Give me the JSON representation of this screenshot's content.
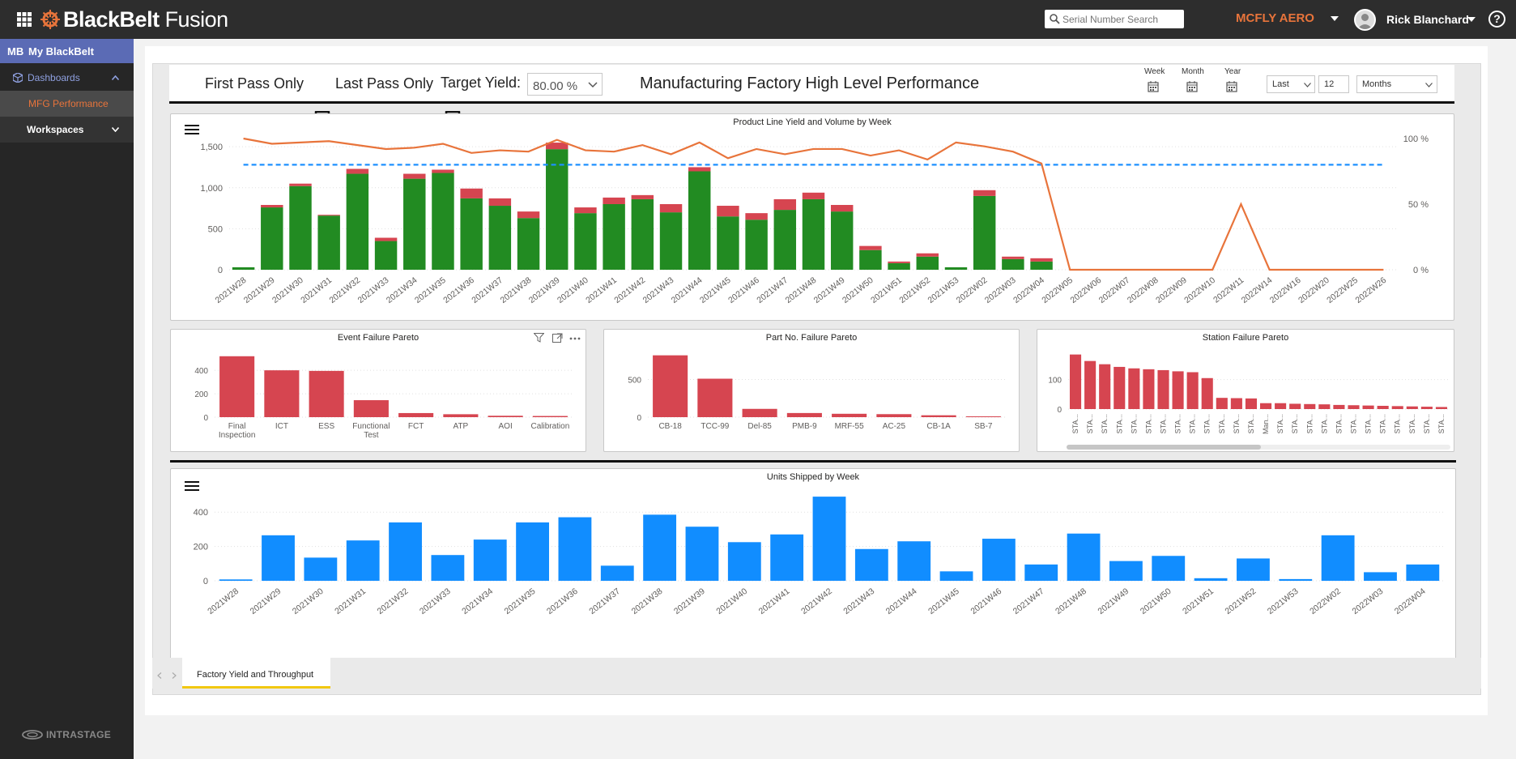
{
  "topbar": {
    "brand_bold": "BlackBelt",
    "brand_light": " Fusion",
    "search_placeholder": "Serial Number Search",
    "org_name": "MCFLY AERO",
    "user_name": "Rick Blanchard"
  },
  "sidebar": {
    "header_badge": "MB",
    "header_label": "My BlackBelt",
    "dashboards_label": "Dashboards",
    "active_item": "MFG Performance",
    "workspaces_label": "Workspaces",
    "footer_logo": "INTRASTAGE"
  },
  "report": {
    "first_pass_label": "First Pass Only",
    "last_pass_label": "Last Pass Only",
    "target_yield_label": "Target Yield:",
    "target_yield_value": "80.00 %",
    "title": "Manufacturing Factory High Level Performance",
    "period_week": "Week",
    "period_month": "Month",
    "period_year": "Year",
    "relative_value": "Last",
    "count_value": "12",
    "unit_value": "Months",
    "page_tab": "Factory Yield and Throughput",
    "colors": {
      "pass": "#228b22",
      "fail": "#d64550",
      "yield_line": "#e8743b",
      "target": "#1e90ff",
      "shipped": "#118dff",
      "accent": "#e8743b"
    }
  },
  "chart_data": [
    {
      "type": "bar",
      "title": "Product Line Yield and Volume by Week",
      "categories": [
        "2021W28",
        "2021W29",
        "2021W30",
        "2021W31",
        "2021W32",
        "2021W33",
        "2021W34",
        "2021W35",
        "2021W36",
        "2021W37",
        "2021W38",
        "2021W39",
        "2021W40",
        "2021W41",
        "2021W42",
        "2021W43",
        "2021W44",
        "2021W45",
        "2021W46",
        "2021W47",
        "2021W48",
        "2021W49",
        "2021W50",
        "2021W51",
        "2021W52",
        "2021W53",
        "2022W02",
        "2022W03",
        "2022W04",
        "2022W05",
        "2022W06",
        "2022W07",
        "2022W08",
        "2022W09",
        "2022W10",
        "2022W11",
        "2022W14",
        "2022W16",
        "2022W20",
        "2022W25",
        "2022W26"
      ],
      "series": [
        {
          "values": [
            30,
            760,
            1020,
            660,
            1170,
            350,
            1110,
            1180,
            870,
            780,
            630,
            1470,
            690,
            800,
            860,
            700,
            1200,
            650,
            610,
            730,
            860,
            710,
            240,
            80,
            160,
            30,
            900,
            130,
            100,
            0,
            0,
            0,
            0,
            0,
            0,
            0,
            0,
            0,
            0,
            0,
            0
          ]
        },
        {
          "values": [
            0,
            30,
            30,
            10,
            60,
            40,
            60,
            40,
            120,
            90,
            80,
            80,
            70,
            80,
            50,
            100,
            50,
            130,
            80,
            130,
            80,
            80,
            50,
            20,
            40,
            0,
            70,
            30,
            40,
            0,
            0,
            0,
            0,
            0,
            0,
            0,
            0,
            0,
            0,
            0,
            0
          ]
        },
        {
          "values": [
            100,
            96,
            97,
            98,
            95,
            92,
            93,
            96,
            89,
            91,
            90,
            99,
            91,
            90,
            95,
            88,
            97,
            85,
            92,
            88,
            92,
            92,
            87,
            91,
            84,
            97,
            94,
            90,
            81,
            0,
            0,
            0,
            0,
            0,
            0,
            50,
            0,
            0,
            0,
            0,
            0
          ]
        },
        {
          "values": [
            80,
            80,
            80,
            80,
            80,
            80,
            80,
            80,
            80,
            80,
            80,
            80,
            80,
            80,
            80,
            80,
            80,
            80,
            80,
            80,
            80,
            80,
            80,
            80,
            80,
            80,
            80,
            80,
            80,
            80,
            80,
            80,
            80,
            80,
            80,
            80,
            80,
            80,
            80,
            80,
            80
          ]
        }
      ],
      "y_ticks": [
        "0",
        "500",
        "1,000",
        "1,500"
      ],
      "y2_ticks": [
        "0 %",
        "50 %",
        "100 %"
      ],
      "ylim": [
        0,
        1600
      ],
      "y2lim": [
        0,
        100
      ]
    },
    {
      "type": "bar",
      "title": "Event Failure Pareto",
      "categories": [
        "Final Inspection",
        "ICT",
        "ESS",
        "Functional Test",
        "FCT",
        "ATP",
        "AOI",
        "Calibration"
      ],
      "values": [
        520,
        400,
        395,
        145,
        35,
        25,
        12,
        10
      ],
      "y_ticks": [
        "0",
        "200",
        "400"
      ],
      "ylim": [
        0,
        560
      ]
    },
    {
      "type": "bar",
      "title": "Part No. Failure Pareto",
      "categories": [
        "CB-18",
        "TCC-99",
        "Del-85",
        "PMB-9",
        "MRF-55",
        "AC-25",
        "CB-1A",
        "SB-7"
      ],
      "values": [
        820,
        510,
        110,
        55,
        45,
        40,
        25,
        10
      ],
      "y_ticks": [
        "0",
        "500"
      ],
      "ylim": [
        0,
        870
      ]
    },
    {
      "type": "bar",
      "title": "Station Failure Pareto",
      "categories": [
        "STA...",
        "STA...",
        "STA...",
        "STA...",
        "STA...",
        "STA...",
        "STA...",
        "STA...",
        "STA...",
        "STA...",
        "STA...",
        "STA...",
        "STA...",
        "Man...",
        "STA...",
        "STA...",
        "STA...",
        "STA...",
        "STA...",
        "STA...",
        "STA...",
        "STA...",
        "STA...",
        "STA...",
        "STA...",
        "STA..."
      ],
      "values": [
        185,
        163,
        152,
        143,
        138,
        135,
        132,
        128,
        125,
        105,
        38,
        37,
        36,
        20,
        20,
        18,
        17,
        16,
        14,
        13,
        12,
        11,
        10,
        9,
        8,
        7
      ],
      "y_ticks": [
        "0",
        "100"
      ],
      "ylim": [
        0,
        195
      ]
    },
    {
      "type": "bar",
      "title": "Units Shipped by Week",
      "categories": [
        "2021W28",
        "2021W29",
        "2021W30",
        "2021W31",
        "2021W32",
        "2021W33",
        "2021W34",
        "2021W35",
        "2021W36",
        "2021W37",
        "2021W38",
        "2021W39",
        "2021W40",
        "2021W41",
        "2021W42",
        "2021W43",
        "2021W44",
        "2021W45",
        "2021W46",
        "2021W47",
        "2021W48",
        "2021W49",
        "2021W50",
        "2021W51",
        "2021W52",
        "2021W53",
        "2022W02",
        "2022W03",
        "2022W04"
      ],
      "values": [
        8,
        265,
        135,
        235,
        340,
        150,
        240,
        340,
        370,
        88,
        385,
        315,
        225,
        270,
        490,
        185,
        230,
        55,
        245,
        95,
        275,
        115,
        145,
        15,
        130,
        10,
        265,
        50,
        95
      ],
      "y_ticks": [
        "0",
        "200",
        "400"
      ],
      "ylim": [
        0,
        500
      ]
    }
  ]
}
